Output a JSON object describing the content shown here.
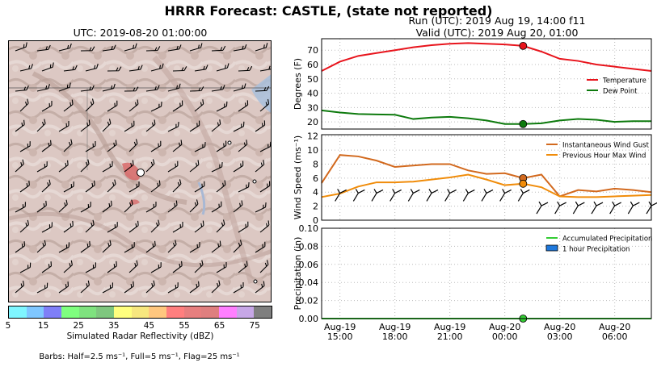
{
  "header": {
    "title": "HRRR Forecast: CASTLE, (state not reported)",
    "run": "Run (UTC): 2019 Aug 19, 14:00 f11",
    "valid": "Valid (UTC): 2019 Aug 20, 01:00"
  },
  "map": {
    "title": "UTC: 2019-08-20 01:00:00",
    "colorbar_label": "Simulated Radar Reflectivity (dBZ)",
    "colorbar_ticks": [
      "5",
      "15",
      "25",
      "35",
      "45",
      "55",
      "65",
      "75"
    ],
    "colorbar_colors": [
      "#7ff6ff",
      "#7fc7ff",
      "#7f7ff7",
      "#7fff7f",
      "#7fe27f",
      "#7fc77f",
      "#ffff7f",
      "#f7e77f",
      "#ffc77f",
      "#ff7f7f",
      "#e77f7f",
      "#df7f7f",
      "#ff7fff",
      "#c7a7e7",
      "#7f7f7f"
    ],
    "barb_note": "Barbs: Half=2.5 ms⁻¹, Full=5 ms⁻¹, Flag=25 ms⁻¹"
  },
  "chart_data": [
    {
      "type": "line",
      "ylabel": "Degrees (F)",
      "ylim": [
        15,
        78
      ],
      "yticks": [
        20,
        30,
        40,
        50,
        60,
        70
      ],
      "x": [
        "Aug-19 14:00",
        "Aug-19 15:00",
        "Aug-19 16:00",
        "Aug-19 17:00",
        "Aug-19 18:00",
        "Aug-19 19:00",
        "Aug-19 20:00",
        "Aug-19 21:00",
        "Aug-19 22:00",
        "Aug-19 23:00",
        "Aug-20 00:00",
        "Aug-20 01:00",
        "Aug-20 02:00",
        "Aug-20 03:00",
        "Aug-20 04:00",
        "Aug-20 05:00",
        "Aug-20 06:00",
        "Aug-20 07:00",
        "Aug-20 08:00"
      ],
      "series": [
        {
          "name": "Temperature",
          "color": "#e8141c",
          "values": [
            55.5,
            62,
            66,
            68,
            70,
            72,
            73.5,
            74.5,
            75,
            74.5,
            74,
            73,
            69,
            64,
            62.5,
            60,
            58.5,
            57,
            55.5
          ]
        },
        {
          "name": "Dew Point",
          "color": "#0d7a0d",
          "values": [
            28,
            26.5,
            25.5,
            25.2,
            25,
            22,
            23,
            23.5,
            22.5,
            21,
            18.5,
            18.5,
            19,
            21,
            22,
            21.5,
            20,
            20.5,
            20.5
          ]
        }
      ],
      "markers": [
        {
          "series": "Temperature",
          "x": "Aug-20 01:00",
          "value": 73,
          "color": "#e8141c"
        },
        {
          "series": "Dew Point",
          "x": "Aug-20 01:00",
          "value": 18.5,
          "color": "#0d7a0d"
        }
      ],
      "legend": "right",
      "grid": true
    },
    {
      "type": "line",
      "ylabel": "Wind Speed (ms⁻¹)",
      "ylim": [
        0,
        12.2
      ],
      "yticks": [
        0,
        2,
        4,
        6,
        8,
        10,
        12
      ],
      "x": [
        "Aug-19 14:00",
        "Aug-19 15:00",
        "Aug-19 16:00",
        "Aug-19 17:00",
        "Aug-19 18:00",
        "Aug-19 19:00",
        "Aug-19 20:00",
        "Aug-19 21:00",
        "Aug-19 22:00",
        "Aug-19 23:00",
        "Aug-20 00:00",
        "Aug-20 01:00",
        "Aug-20 02:00",
        "Aug-20 03:00",
        "Aug-20 04:00",
        "Aug-20 05:00",
        "Aug-20 06:00",
        "Aug-20 07:00",
        "Aug-20 08:00"
      ],
      "series": [
        {
          "name": "Instantaneous Wind Gust",
          "color": "#d2691e",
          "values": [
            5.3,
            9.3,
            9.1,
            8.5,
            7.6,
            7.8,
            8,
            8,
            7.1,
            6.6,
            6.7,
            6.0,
            6.5,
            3.4,
            4.3,
            4.1,
            4.5,
            4.3,
            4.0
          ]
        },
        {
          "name": "Previous Hour Max Wind",
          "color": "#f08c0a",
          "values": [
            3.3,
            3.8,
            4.8,
            5.4,
            5.4,
            5.5,
            5.8,
            6.1,
            6.5,
            5.8,
            5.0,
            5.2,
            4.7,
            3.4,
            3.3,
            3.3,
            3.4,
            3.5,
            3.6
          ]
        }
      ],
      "markers": [
        {
          "series": "Instantaneous Wind Gust",
          "x": "Aug-20 01:00",
          "value": 6.0,
          "color": "#d2691e"
        },
        {
          "series": "Previous Hour Max Wind",
          "x": "Aug-20 01:00",
          "value": 5.2,
          "color": "#f08c0a"
        }
      ],
      "legend": "top-right",
      "grid": true
    },
    {
      "type": "line",
      "ylabel": "Precipitation (in)",
      "ylim": [
        0,
        0.1
      ],
      "yticks": [
        "0.00",
        "0.02",
        "0.04",
        "0.06",
        "0.08",
        "0.10"
      ],
      "x": [
        "Aug-19 14:00",
        "Aug-19 15:00",
        "Aug-19 16:00",
        "Aug-19 17:00",
        "Aug-19 18:00",
        "Aug-19 19:00",
        "Aug-19 20:00",
        "Aug-19 21:00",
        "Aug-19 22:00",
        "Aug-19 23:00",
        "Aug-20 00:00",
        "Aug-20 01:00",
        "Aug-20 02:00",
        "Aug-20 03:00",
        "Aug-20 04:00",
        "Aug-20 05:00",
        "Aug-20 06:00",
        "Aug-20 07:00",
        "Aug-20 08:00"
      ],
      "series": [
        {
          "name": "Accumulated Precipitation",
          "color": "#33cc33",
          "values": [
            0,
            0,
            0,
            0,
            0,
            0,
            0,
            0,
            0,
            0,
            0,
            0,
            0,
            0,
            0,
            0,
            0,
            0,
            0
          ]
        },
        {
          "name": "1 hour Precipitation",
          "color": "#1e78dc",
          "type": "bar",
          "values": [
            0,
            0,
            0,
            0,
            0,
            0,
            0,
            0,
            0,
            0,
            0,
            0,
            0,
            0,
            0,
            0,
            0,
            0,
            0
          ]
        }
      ],
      "markers": [
        {
          "series": "Accumulated Precipitation",
          "x": "Aug-20 01:00",
          "value": 0,
          "color": "#33cc33"
        }
      ],
      "xtick_labels": [
        [
          "Aug-19",
          "15:00"
        ],
        [
          "Aug-19",
          "18:00"
        ],
        [
          "Aug-19",
          "21:00"
        ],
        [
          "Aug-20",
          "00:00"
        ],
        [
          "Aug-20",
          "03:00"
        ],
        [
          "Aug-20",
          "06:00"
        ]
      ],
      "legend": "top-right",
      "grid": true
    }
  ]
}
